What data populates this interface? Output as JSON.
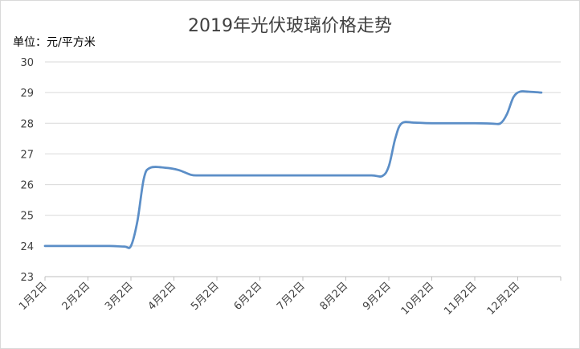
{
  "chart_data": {
    "type": "line",
    "title": "2019年光伏玻璃价格走势",
    "ylabel": "单位：元/平方米",
    "xlabel": "",
    "ylim": [
      23,
      30
    ],
    "yticks": [
      23,
      24,
      25,
      26,
      27,
      28,
      29,
      30
    ],
    "categories": [
      "1月2日",
      "2月2日",
      "3月2日",
      "4月2日",
      "5月2日",
      "6月2日",
      "7月2日",
      "8月2日",
      "9月2日",
      "10月2日",
      "11月2日",
      "12月2日"
    ],
    "grid": true,
    "legend": "none",
    "line_color": "#5B8EC7",
    "series": [
      {
        "points": [
          [
            0,
            24.0
          ],
          [
            0.5,
            24.0
          ],
          [
            1.0,
            24.0
          ],
          [
            1.5,
            24.0
          ],
          [
            1.85,
            23.98
          ],
          [
            2.0,
            24.0
          ],
          [
            2.15,
            24.8
          ],
          [
            2.3,
            26.2
          ],
          [
            2.45,
            26.55
          ],
          [
            2.8,
            26.55
          ],
          [
            3.1,
            26.48
          ],
          [
            3.4,
            26.32
          ],
          [
            3.6,
            26.3
          ],
          [
            4.0,
            26.3
          ],
          [
            5.0,
            26.3
          ],
          [
            6.0,
            26.3
          ],
          [
            7.0,
            26.3
          ],
          [
            7.6,
            26.3
          ],
          [
            7.85,
            26.28
          ],
          [
            8.0,
            26.6
          ],
          [
            8.15,
            27.5
          ],
          [
            8.3,
            28.0
          ],
          [
            8.6,
            28.02
          ],
          [
            9.0,
            28.0
          ],
          [
            10.0,
            28.0
          ],
          [
            10.4,
            27.99
          ],
          [
            10.6,
            28.0
          ],
          [
            10.75,
            28.3
          ],
          [
            10.9,
            28.85
          ],
          [
            11.05,
            29.03
          ],
          [
            11.25,
            29.03
          ],
          [
            11.55,
            29.0
          ]
        ]
      }
    ]
  }
}
